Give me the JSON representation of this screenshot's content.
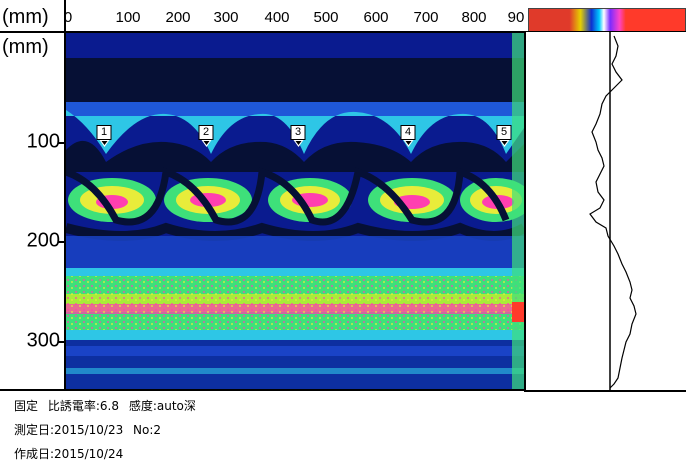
{
  "x_axis": {
    "unit": "(mm)",
    "ticks": [
      "0",
      "100",
      "200",
      "300",
      "400",
      "500",
      "600",
      "700",
      "800",
      "90"
    ]
  },
  "y_axis": {
    "unit": "(mm)",
    "ticks": [
      "100",
      "200",
      "300"
    ]
  },
  "markers": [
    "1",
    "2",
    "3",
    "4",
    "5"
  ],
  "info": {
    "mode": "固定",
    "permittivity": "比誘電率:6.8",
    "sensitivity": "感度:auto深",
    "measure_date": "測定日:2015/10/23",
    "number": "No:2",
    "created_date": "作成日:2015/10/24"
  },
  "icons": {
    "marker": "triangle-down-marker-icon"
  },
  "colors": {
    "background": "#0a1b8f",
    "band_cyan": "#2ec6e6",
    "band_green": "#3ee07a",
    "band_yellow": "#e8ec3a",
    "band_magenta": "#ff3fb0",
    "band_dark": "#061035"
  }
}
